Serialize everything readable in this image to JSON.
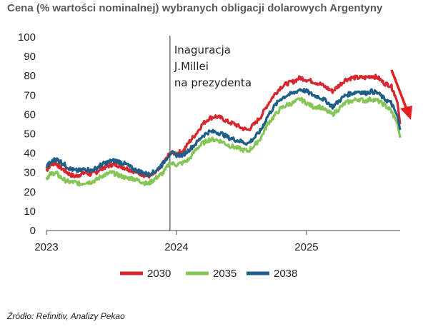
{
  "title": "Cena (% wartości nominalnej) wybranych obligacji dolarowych Argentyny",
  "source": "Źródło: Refinitiv, Analizy Pekao",
  "chart_data": {
    "type": "line",
    "title": "Cena (% wartości nominalnej) wybranych obligacji dolarowych Argentyny",
    "xlabel": "",
    "ylabel": "",
    "ylim": [
      0,
      100
    ],
    "y_ticks": [
      0,
      10,
      20,
      30,
      40,
      50,
      60,
      70,
      80,
      90,
      100
    ],
    "x_ticks": [
      {
        "value": 2023,
        "label": "2023"
      },
      {
        "value": 2024,
        "label": "2024"
      },
      {
        "value": 2025,
        "label": "2025"
      }
    ],
    "xlim": [
      2023.0,
      2025.72
    ],
    "grid": false,
    "legend_position": "bottom",
    "annotation": {
      "x": 2023.95,
      "lines": [
        "Inaguracja",
        "J.Millei",
        "na prezydenta"
      ]
    },
    "arrow": {
      "from": [
        2025.69,
        85
      ],
      "to": [
        2025.79,
        58
      ],
      "color": "#e3201b"
    },
    "series": [
      {
        "name": "2030",
        "color": "#d7262e",
        "points": [
          [
            2023.0,
            31
          ],
          [
            2023.03,
            34
          ],
          [
            2023.07,
            35
          ],
          [
            2023.1,
            33
          ],
          [
            2023.14,
            31
          ],
          [
            2023.18,
            29
          ],
          [
            2023.22,
            28
          ],
          [
            2023.26,
            29
          ],
          [
            2023.3,
            30
          ],
          [
            2023.34,
            29
          ],
          [
            2023.38,
            30
          ],
          [
            2023.42,
            32
          ],
          [
            2023.46,
            33
          ],
          [
            2023.5,
            34
          ],
          [
            2023.54,
            34
          ],
          [
            2023.58,
            33
          ],
          [
            2023.62,
            32
          ],
          [
            2023.66,
            31
          ],
          [
            2023.7,
            30
          ],
          [
            2023.74,
            29
          ],
          [
            2023.78,
            28
          ],
          [
            2023.82,
            29
          ],
          [
            2023.86,
            31
          ],
          [
            2023.9,
            35
          ],
          [
            2023.95,
            40
          ],
          [
            2024.0,
            40
          ],
          [
            2024.05,
            41
          ],
          [
            2024.1,
            46
          ],
          [
            2024.15,
            50
          ],
          [
            2024.2,
            55
          ],
          [
            2024.25,
            58
          ],
          [
            2024.3,
            59
          ],
          [
            2024.35,
            58
          ],
          [
            2024.4,
            56
          ],
          [
            2024.45,
            55
          ],
          [
            2024.5,
            53
          ],
          [
            2024.55,
            52
          ],
          [
            2024.6,
            55
          ],
          [
            2024.65,
            59
          ],
          [
            2024.7,
            65
          ],
          [
            2024.75,
            70
          ],
          [
            2024.8,
            74
          ],
          [
            2024.85,
            76
          ],
          [
            2024.9,
            77
          ],
          [
            2024.95,
            79
          ],
          [
            2025.0,
            78
          ],
          [
            2025.05,
            77
          ],
          [
            2025.1,
            76
          ],
          [
            2025.15,
            74
          ],
          [
            2025.2,
            72
          ],
          [
            2025.25,
            75
          ],
          [
            2025.3,
            78
          ],
          [
            2025.35,
            79
          ],
          [
            2025.4,
            79
          ],
          [
            2025.45,
            79
          ],
          [
            2025.5,
            80
          ],
          [
            2025.55,
            79
          ],
          [
            2025.6,
            76
          ],
          [
            2025.65,
            75
          ],
          [
            2025.68,
            70
          ],
          [
            2025.7,
            66
          ],
          [
            2025.72,
            55
          ]
        ]
      },
      {
        "name": "2035",
        "color": "#86c657",
        "points": [
          [
            2023.0,
            27
          ],
          [
            2023.03,
            29
          ],
          [
            2023.07,
            30
          ],
          [
            2023.1,
            28
          ],
          [
            2023.14,
            26
          ],
          [
            2023.18,
            25
          ],
          [
            2023.22,
            25
          ],
          [
            2023.26,
            24
          ],
          [
            2023.3,
            25
          ],
          [
            2023.34,
            25
          ],
          [
            2023.38,
            26
          ],
          [
            2023.42,
            28
          ],
          [
            2023.46,
            29
          ],
          [
            2023.5,
            30
          ],
          [
            2023.54,
            29
          ],
          [
            2023.58,
            28
          ],
          [
            2023.62,
            27
          ],
          [
            2023.66,
            27
          ],
          [
            2023.7,
            26
          ],
          [
            2023.74,
            25
          ],
          [
            2023.78,
            24
          ],
          [
            2023.82,
            26
          ],
          [
            2023.86,
            28
          ],
          [
            2023.9,
            30
          ],
          [
            2023.95,
            35
          ],
          [
            2024.0,
            34
          ],
          [
            2024.05,
            35
          ],
          [
            2024.1,
            37
          ],
          [
            2024.15,
            42
          ],
          [
            2024.2,
            45
          ],
          [
            2024.25,
            47
          ],
          [
            2024.3,
            47
          ],
          [
            2024.35,
            46
          ],
          [
            2024.4,
            44
          ],
          [
            2024.45,
            43
          ],
          [
            2024.5,
            42
          ],
          [
            2024.55,
            41
          ],
          [
            2024.6,
            44
          ],
          [
            2024.65,
            48
          ],
          [
            2024.7,
            55
          ],
          [
            2024.75,
            59
          ],
          [
            2024.8,
            63
          ],
          [
            2024.85,
            65
          ],
          [
            2024.9,
            66
          ],
          [
            2024.95,
            68
          ],
          [
            2025.0,
            66
          ],
          [
            2025.05,
            64
          ],
          [
            2025.1,
            64
          ],
          [
            2025.15,
            62
          ],
          [
            2025.2,
            60
          ],
          [
            2025.25,
            63
          ],
          [
            2025.3,
            66
          ],
          [
            2025.35,
            67
          ],
          [
            2025.4,
            68
          ],
          [
            2025.45,
            67
          ],
          [
            2025.5,
            68
          ],
          [
            2025.55,
            67
          ],
          [
            2025.6,
            65
          ],
          [
            2025.65,
            62
          ],
          [
            2025.68,
            58
          ],
          [
            2025.7,
            55
          ],
          [
            2025.72,
            48
          ]
        ]
      },
      {
        "name": "2038",
        "color": "#1f5e86",
        "points": [
          [
            2023.0,
            33
          ],
          [
            2023.03,
            35
          ],
          [
            2023.07,
            37
          ],
          [
            2023.1,
            36
          ],
          [
            2023.14,
            34
          ],
          [
            2023.18,
            32
          ],
          [
            2023.22,
            31
          ],
          [
            2023.26,
            31
          ],
          [
            2023.3,
            32
          ],
          [
            2023.34,
            31
          ],
          [
            2023.38,
            32
          ],
          [
            2023.42,
            34
          ],
          [
            2023.46,
            35
          ],
          [
            2023.5,
            36
          ],
          [
            2023.54,
            36
          ],
          [
            2023.58,
            35
          ],
          [
            2023.62,
            34
          ],
          [
            2023.66,
            32
          ],
          [
            2023.7,
            31
          ],
          [
            2023.74,
            30
          ],
          [
            2023.78,
            29
          ],
          [
            2023.82,
            30
          ],
          [
            2023.86,
            32
          ],
          [
            2023.9,
            35
          ],
          [
            2023.95,
            40
          ],
          [
            2024.0,
            39
          ],
          [
            2024.05,
            39
          ],
          [
            2024.1,
            42
          ],
          [
            2024.15,
            45
          ],
          [
            2024.2,
            49
          ],
          [
            2024.25,
            51
          ],
          [
            2024.3,
            51
          ],
          [
            2024.35,
            50
          ],
          [
            2024.4,
            48
          ],
          [
            2024.45,
            47
          ],
          [
            2024.5,
            46
          ],
          [
            2024.55,
            45
          ],
          [
            2024.6,
            48
          ],
          [
            2024.65,
            52
          ],
          [
            2024.7,
            59
          ],
          [
            2024.75,
            64
          ],
          [
            2024.8,
            68
          ],
          [
            2024.85,
            70
          ],
          [
            2024.9,
            71
          ],
          [
            2024.95,
            73
          ],
          [
            2025.0,
            72
          ],
          [
            2025.05,
            70
          ],
          [
            2025.1,
            69
          ],
          [
            2025.15,
            67
          ],
          [
            2025.2,
            64
          ],
          [
            2025.25,
            67
          ],
          [
            2025.3,
            70
          ],
          [
            2025.35,
            71
          ],
          [
            2025.4,
            72
          ],
          [
            2025.45,
            71
          ],
          [
            2025.5,
            72
          ],
          [
            2025.55,
            71
          ],
          [
            2025.6,
            68
          ],
          [
            2025.65,
            66
          ],
          [
            2025.68,
            62
          ],
          [
            2025.7,
            59
          ],
          [
            2025.72,
            52
          ]
        ]
      }
    ]
  }
}
